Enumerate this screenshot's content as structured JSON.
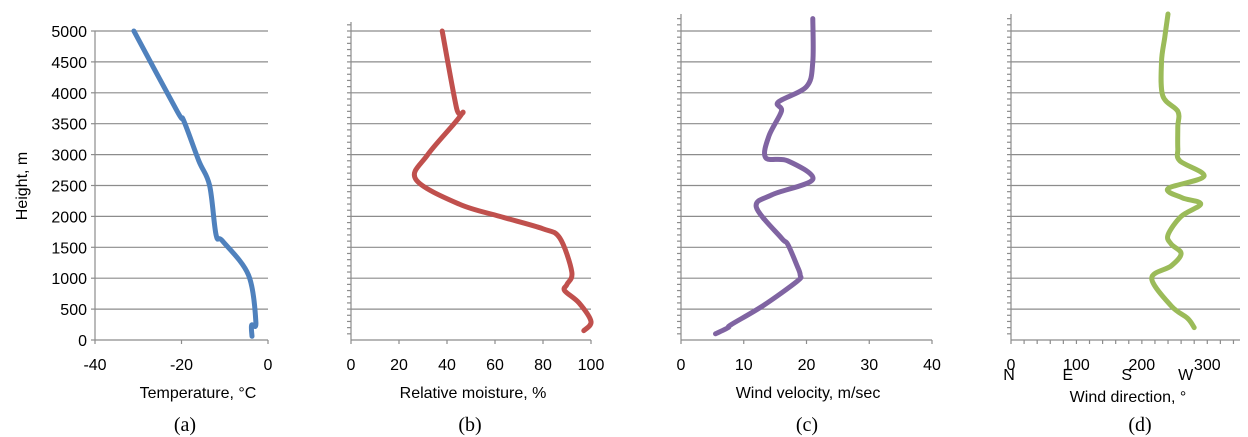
{
  "chart_data": [
    {
      "type": "line",
      "caption": "(a)",
      "xlabel": "Temperature, °C",
      "ylabel": "Height, m",
      "xlim": [
        -40,
        0
      ],
      "xticks": [
        -40,
        -20,
        0
      ],
      "ylim": [
        0,
        5000
      ],
      "yticks": [
        0,
        500,
        1000,
        1500,
        2000,
        2500,
        3000,
        3500,
        4000,
        4500,
        5000
      ],
      "grid": true,
      "color": "#4f81bd",
      "series": [
        {
          "x": [
            -3.7,
            -3.8,
            -2.8,
            -4.5,
            -10.5,
            -12,
            -13.5,
            -16,
            -19.5,
            -21,
            -31
          ],
          "y": [
            60,
            240,
            280,
            1050,
            1600,
            1700,
            2500,
            2900,
            3550,
            3700,
            5000
          ]
        }
      ]
    },
    {
      "type": "line",
      "caption": "(b)",
      "xlabel": "Relative moisture, %",
      "xlim": [
        0,
        100
      ],
      "xticks": [
        0,
        20,
        40,
        60,
        80,
        100
      ],
      "ylim": [
        0,
        5000
      ],
      "grid": true,
      "color": "#c0504d",
      "series": [
        {
          "x": [
            97,
            100,
            95,
            89,
            90,
            92,
            87,
            80,
            62,
            45,
            27,
            32,
            46,
            44,
            38
          ],
          "y": [
            150,
            300,
            600,
            800,
            900,
            1100,
            1650,
            1800,
            2000,
            2200,
            2600,
            3000,
            3650,
            3750,
            5000
          ]
        }
      ]
    },
    {
      "type": "line",
      "caption": "(c)",
      "xlabel": "Wind velocity, m/sec",
      "xlim": [
        0,
        40
      ],
      "xticks": [
        0,
        10,
        20,
        30,
        40
      ],
      "ylim": [
        0,
        5000
      ],
      "grid": true,
      "color": "#8064a2",
      "series": [
        {
          "x": [
            5.5,
            7.5,
            8,
            13,
            18.5,
            19,
            18.5,
            17,
            16,
            12,
            14.5,
            21,
            17,
            13.5,
            14,
            16,
            15.5,
            20,
            21,
            21
          ],
          "y": [
            100,
            200,
            250,
            550,
            950,
            1050,
            1200,
            1550,
            1650,
            2150,
            2350,
            2600,
            2900,
            2950,
            3300,
            3700,
            3850,
            4100,
            4500,
            5200
          ]
        }
      ]
    },
    {
      "type": "line",
      "caption": "(d)",
      "xlabel": "Wind direction, °",
      "xlim": [
        0,
        350
      ],
      "xticks": [
        0,
        100,
        200,
        300
      ],
      "compass": [
        "N",
        "E",
        "S",
        "W"
      ],
      "compass_at": [
        0,
        90,
        180,
        270
      ],
      "ylim": [
        0,
        5000
      ],
      "grid": true,
      "color": "#9bbb59",
      "series": [
        {
          "x": [
            280,
            270,
            245,
            215,
            245,
            260,
            245,
            240,
            260,
            290,
            262,
            240,
            295,
            258,
            255,
            255,
            255,
            232,
            230,
            235,
            240
          ],
          "y": [
            200,
            350,
            550,
            1000,
            1200,
            1400,
            1550,
            1700,
            2000,
            2200,
            2300,
            2450,
            2650,
            2900,
            3100,
            3450,
            3700,
            3950,
            4500,
            4900,
            5300
          ]
        }
      ]
    }
  ]
}
